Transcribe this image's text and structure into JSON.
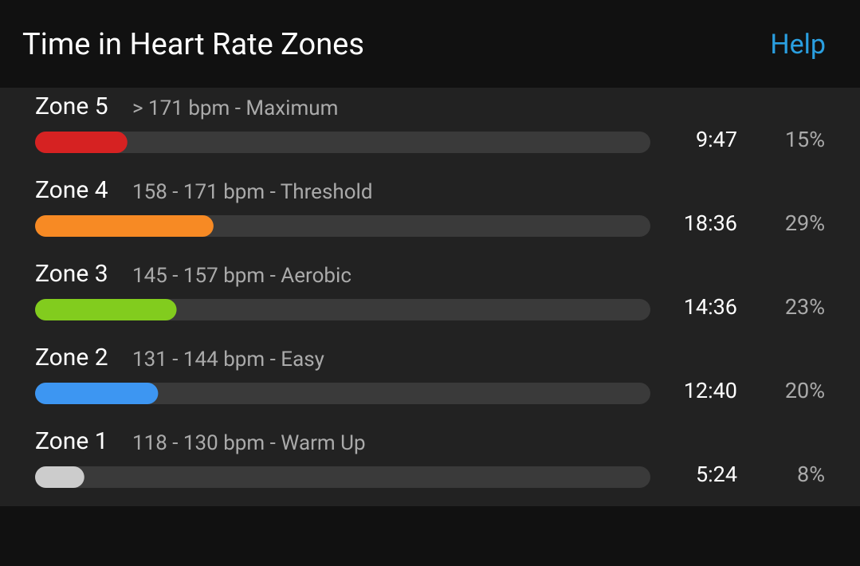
{
  "header": {
    "title": "Time in Heart Rate Zones",
    "help": "Help"
  },
  "xlim": [
    0,
    100
  ],
  "zones": [
    {
      "name": "Zone 5",
      "range": "> 171 bpm - Maximum",
      "time": "9:47",
      "percent": {
        "value": 15,
        "label": "15%"
      },
      "color": "#d62222"
    },
    {
      "name": "Zone 4",
      "range": "158 - 171 bpm - Threshold",
      "time": "18:36",
      "percent": {
        "value": 29,
        "label": "29%"
      },
      "color": "#f78a24"
    },
    {
      "name": "Zone 3",
      "range": "145 - 157 bpm - Aerobic",
      "time": "14:36",
      "percent": {
        "value": 23,
        "label": "23%"
      },
      "color": "#82cc1e"
    },
    {
      "name": "Zone 2",
      "range": "131 - 144 bpm - Easy",
      "time": "12:40",
      "percent": {
        "value": 20,
        "label": "20%"
      },
      "color": "#3d96f2"
    },
    {
      "name": "Zone 1",
      "range": "118 - 130 bpm - Warm Up",
      "time": "5:24",
      "percent": {
        "value": 8,
        "label": "8%"
      },
      "color": "#cccccc"
    }
  ]
}
